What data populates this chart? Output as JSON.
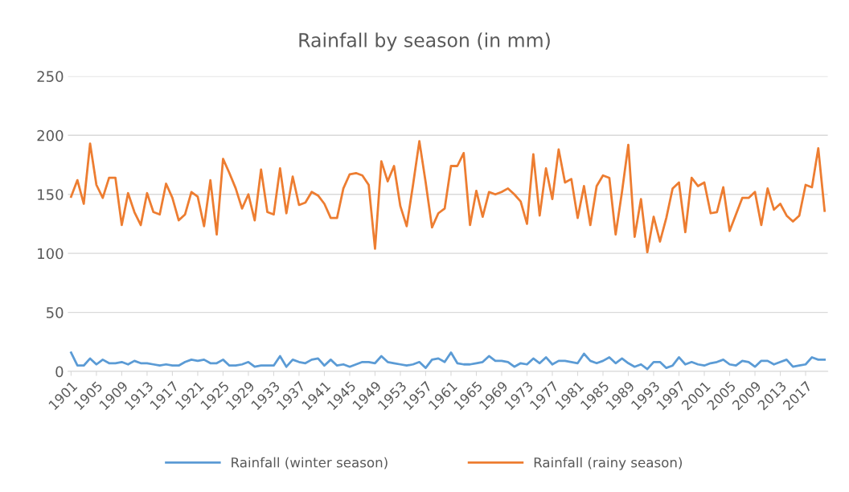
{
  "chart_data": {
    "type": "line",
    "title": "Rainfall by season (in mm)",
    "categories": [
      "1901",
      null,
      null,
      null,
      "1905",
      null,
      null,
      null,
      "1909",
      null,
      null,
      null,
      "1913",
      null,
      null,
      null,
      "1917",
      null,
      null,
      null,
      "1921",
      null,
      null,
      null,
      "1925",
      null,
      null,
      null,
      "1929",
      null,
      null,
      null,
      "1933",
      null,
      null,
      null,
      "1937",
      null,
      null,
      null,
      "1941",
      null,
      null,
      null,
      "1945",
      null,
      null,
      null,
      "1949",
      null,
      null,
      null,
      "1953",
      null,
      null,
      null,
      "1957",
      null,
      null,
      null,
      "1961",
      null,
      null,
      null,
      "1965",
      null,
      null,
      null,
      "1969",
      null,
      null,
      null,
      "1973",
      null,
      null,
      null,
      "1977",
      null,
      null,
      null,
      "1981",
      null,
      null,
      null,
      "1985",
      null,
      null,
      null,
      "1989",
      null,
      null,
      null,
      "1993",
      null,
      null,
      null,
      "1997",
      null,
      null,
      null,
      "2001",
      null,
      null,
      null,
      "2005",
      null,
      null,
      null,
      "2009",
      null,
      null,
      null,
      "2013",
      null,
      null,
      null,
      "2017",
      null,
      null,
      null
    ],
    "series": [
      {
        "name": "Rainfall (winter season)",
        "color": "#5b9bd5",
        "values": [
          16,
          5,
          5,
          11,
          6,
          10,
          7,
          7,
          8,
          6,
          9,
          7,
          7,
          6,
          5,
          6,
          5,
          5,
          8,
          10,
          9,
          10,
          7,
          7,
          10,
          5,
          5,
          6,
          8,
          4,
          5,
          5,
          5,
          13,
          4,
          10,
          8,
          7,
          10,
          11,
          5,
          10,
          5,
          6,
          4,
          6,
          8,
          8,
          7,
          13,
          8,
          7,
          6,
          5,
          6,
          8,
          3,
          10,
          11,
          8,
          16,
          7,
          6,
          6,
          7,
          8,
          13,
          9,
          9,
          8,
          4,
          7,
          6,
          11,
          7,
          12,
          6,
          9,
          9,
          8,
          7,
          15,
          9,
          7,
          9,
          12,
          7,
          11,
          7,
          4,
          6,
          2,
          8,
          8,
          3,
          5,
          12,
          6,
          8,
          6,
          5,
          7,
          8,
          10,
          6,
          5,
          9,
          8,
          4,
          9,
          9,
          6,
          8,
          10,
          4,
          5,
          6,
          12,
          10,
          10
        ]
      },
      {
        "name": "Rainfall (rainy season)",
        "color": "#ed7d31",
        "values": [
          148,
          162,
          142,
          193,
          158,
          147,
          164,
          164,
          124,
          151,
          135,
          124,
          151,
          135,
          133,
          159,
          147,
          128,
          133,
          152,
          148,
          123,
          162,
          116,
          180,
          168,
          155,
          138,
          150,
          128,
          171,
          135,
          133,
          172,
          134,
          165,
          141,
          143,
          152,
          149,
          142,
          130,
          130,
          155,
          167,
          168,
          166,
          158,
          104,
          178,
          161,
          174,
          140,
          123,
          158,
          195,
          160,
          122,
          134,
          138,
          174,
          174,
          185,
          124,
          153,
          131,
          152,
          150,
          152,
          155,
          150,
          144,
          125,
          184,
          132,
          172,
          146,
          188,
          160,
          163,
          130,
          157,
          124,
          157,
          166,
          164,
          116,
          152,
          192,
          114,
          146,
          101,
          131,
          110,
          130,
          155,
          160,
          118,
          164,
          157,
          160,
          134,
          135,
          156,
          119,
          133,
          147,
          147,
          152,
          124,
          155,
          137,
          142,
          132,
          127,
          132,
          158,
          156,
          189,
          136
        ]
      }
    ],
    "ylim": [
      0,
      250
    ],
    "yticks": [
      0,
      50,
      100,
      150,
      200,
      250
    ],
    "grid": "y",
    "legend": "bottom",
    "marker": "none",
    "line_style": "solid"
  }
}
